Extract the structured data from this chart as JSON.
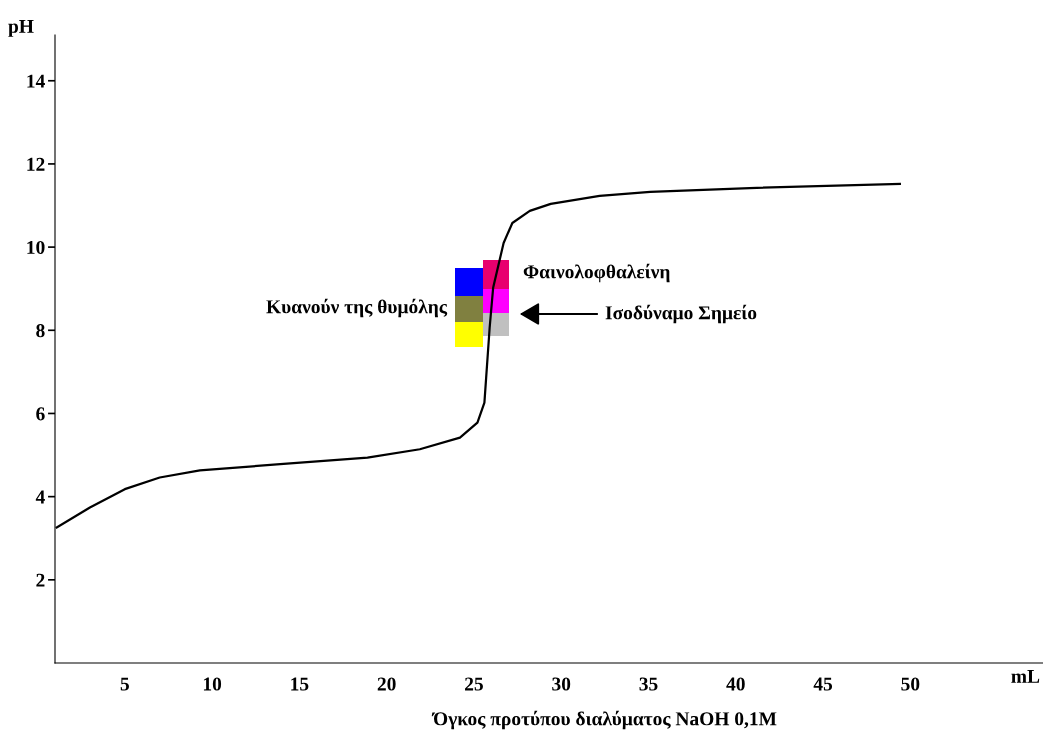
{
  "chart_data": {
    "type": "line",
    "xlabel": "Όγκος προτύπου διαλύματος NaOH 0,1M",
    "ylabel": "pH",
    "x": [
      1.1,
      3.0,
      5.0,
      7.0,
      9.3,
      13.9,
      18.9,
      21.9,
      24.2,
      25.2,
      25.6,
      25.7,
      25.9,
      26.1,
      26.7,
      27.2,
      28.2,
      29.4,
      32.2,
      35.1,
      40.8,
      49.4
    ],
    "series": [
      {
        "color": "#000000",
        "values": [
          3.26,
          3.74,
          4.18,
          4.46,
          4.63,
          4.78,
          4.94,
          5.14,
          5.42,
          5.78,
          6.26,
          6.86,
          8.06,
          9.02,
          10.1,
          10.58,
          10.87,
          11.04,
          11.23,
          11.33,
          11.42,
          11.52
        ]
      }
    ],
    "xlim": [
      1,
      57.6
    ],
    "xticks": [
      5,
      10,
      15,
      20,
      25,
      30,
      35,
      40,
      45,
      50
    ],
    "ylim": [
      0,
      15.1
    ],
    "yticks": [
      2,
      4,
      6,
      8,
      10,
      12,
      14
    ],
    "grid": false,
    "legend": false,
    "marker": "none",
    "line_style": "solid",
    "annotations": [
      "Κυανούν της θυμόλης",
      "Φαινολοφθαλείνη",
      "Ισοδύναμο Σημείο",
      "mL"
    ]
  }
}
